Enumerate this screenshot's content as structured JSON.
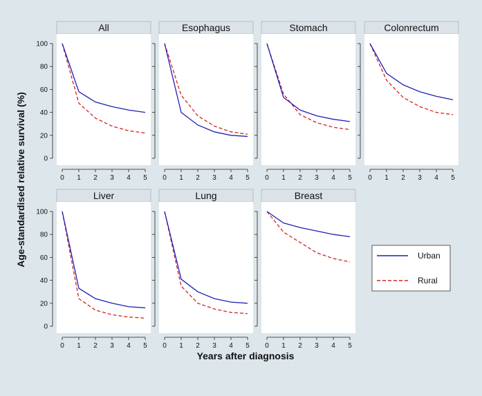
{
  "ylabel": "Age-standardised relative survival (%)",
  "xlabel": "Years after diagnosis",
  "legend": {
    "entries": [
      {
        "label": "Urban",
        "color": "#1f1fb4",
        "dash": "solid"
      },
      {
        "label": "Rural",
        "color": "#d42020",
        "dash": "dashed"
      }
    ],
    "placement": "right"
  },
  "chart_data": {
    "type": "line",
    "x": [
      0,
      1,
      2,
      3,
      4,
      5
    ],
    "xticks": [
      "0",
      "1",
      "2",
      "3",
      "4",
      "5"
    ],
    "yticks": [
      "0",
      "20",
      "40",
      "60",
      "80",
      "100"
    ],
    "ylim": [
      0,
      100
    ],
    "grid": false,
    "panels": [
      {
        "title": "All",
        "series": [
          {
            "name": "Urban",
            "values": [
              100,
              58,
              49,
              45,
              42,
              40
            ]
          },
          {
            "name": "Rural",
            "values": [
              100,
              48,
              35,
              28,
              24,
              22
            ]
          }
        ]
      },
      {
        "title": "Esophagus",
        "series": [
          {
            "name": "Urban",
            "values": [
              100,
              40,
              29,
              23,
              20,
              19
            ]
          },
          {
            "name": "Rural",
            "values": [
              100,
              55,
              37,
              28,
              23,
              21
            ]
          }
        ]
      },
      {
        "title": "Stomach",
        "series": [
          {
            "name": "Urban",
            "values": [
              100,
              53,
              42,
              37,
              34,
              32
            ]
          },
          {
            "name": "Rural",
            "values": [
              100,
              56,
              38,
              31,
              27,
              25
            ]
          }
        ]
      },
      {
        "title": "Colonrectum",
        "series": [
          {
            "name": "Urban",
            "values": [
              100,
              74,
              64,
              58,
              54,
              51
            ]
          },
          {
            "name": "Rural",
            "values": [
              100,
              68,
              53,
              45,
              40,
              38
            ]
          }
        ]
      },
      {
        "title": "Liver",
        "series": [
          {
            "name": "Urban",
            "values": [
              100,
              33,
              24,
              20,
              17,
              16
            ]
          },
          {
            "name": "Rural",
            "values": [
              100,
              24,
              14,
              10,
              8,
              7
            ]
          }
        ]
      },
      {
        "title": "Lung",
        "series": [
          {
            "name": "Urban",
            "values": [
              100,
              41,
              30,
              24,
              21,
              20
            ]
          },
          {
            "name": "Rural",
            "values": [
              100,
              35,
              20,
              15,
              12,
              11
            ]
          }
        ]
      },
      {
        "title": "Breast",
        "series": [
          {
            "name": "Urban",
            "values": [
              100,
              90,
              86,
              83,
              80,
              78
            ]
          },
          {
            "name": "Rural",
            "values": [
              100,
              82,
              73,
              64,
              59,
              56
            ]
          }
        ]
      }
    ]
  }
}
